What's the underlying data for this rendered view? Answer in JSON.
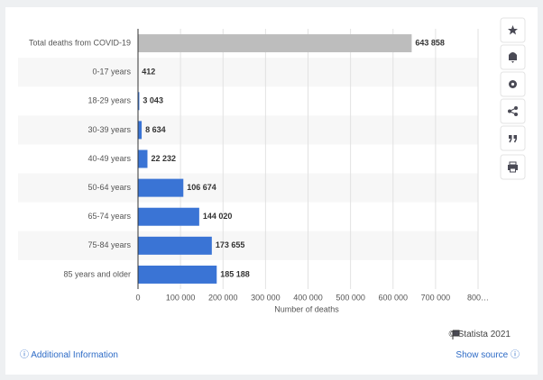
{
  "chart_data": {
    "type": "bar",
    "orientation": "horizontal",
    "categories": [
      "Total deaths from COVID-19",
      "0-17 years",
      "18-29 years",
      "30-39 years",
      "40-49 years",
      "50-64 years",
      "65-74 years",
      "75-84 years",
      "85 years and older"
    ],
    "values": [
      643858,
      412,
      3043,
      8634,
      22232,
      106674,
      144020,
      173655,
      185188
    ],
    "value_labels": [
      "643 858",
      "412",
      "3 043",
      "8 634",
      "22 232",
      "106 674",
      "144 020",
      "173 655",
      "185 188"
    ],
    "colors": [
      "#bdbdbd",
      "#3a74d5",
      "#3a74d5",
      "#3a74d5",
      "#3a74d5",
      "#3a74d5",
      "#3a74d5",
      "#3a74d5",
      "#3a74d5"
    ],
    "xlabel": "Number of deaths",
    "xlim": [
      0,
      800000
    ],
    "xticks": [
      0,
      {
        "value": 100000,
        "label": "100 000"
      },
      {
        "value": 200000,
        "label": "200 000"
      },
      {
        "value": 300000,
        "label": "300 000"
      },
      {
        "value": 400000,
        "label": "400 000"
      },
      {
        "value": 500000,
        "label": "500 000"
      },
      {
        "value": 600000,
        "label": "600 000"
      },
      {
        "value": 700000,
        "label": "700 000"
      },
      {
        "value": 800000,
        "label": "800…"
      }
    ],
    "grid": true
  },
  "footer": {
    "credit": "© Statista 2021",
    "info_link": "Additional Information",
    "source_link": "Show source"
  }
}
